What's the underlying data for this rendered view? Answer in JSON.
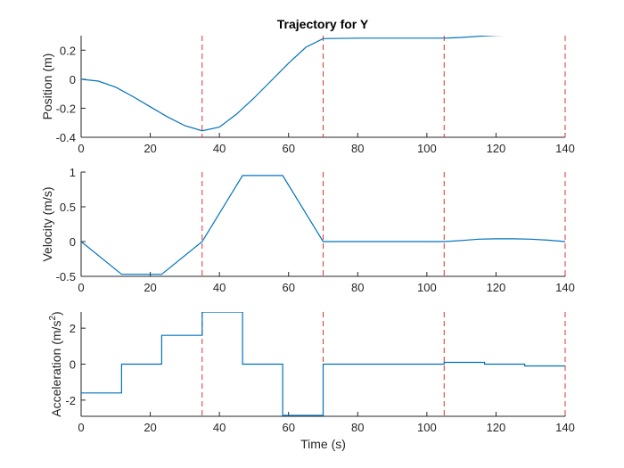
{
  "figure": {
    "title": "Trajectory for Y"
  },
  "chart_data": [
    {
      "type": "line",
      "title": "Trajectory for Y",
      "xlabel": "",
      "ylabel": "Position (m)",
      "xlim": [
        0,
        140
      ],
      "ylim": [
        -0.4,
        0.3
      ],
      "xticks": [
        0,
        20,
        40,
        60,
        80,
        100,
        120,
        140
      ],
      "xtick_labels": [
        "0",
        "20",
        "40",
        "60",
        "80",
        "100",
        "120",
        "140"
      ],
      "yticks": [
        0.2,
        0,
        -0.2,
        -0.4
      ],
      "ytick_labels": [
        "0.2",
        "0",
        "-0.2",
        "-0.4"
      ],
      "vlines": [
        35,
        70,
        105,
        140
      ],
      "series": [
        {
          "x": [
            0,
            5,
            10,
            15,
            20,
            25,
            30,
            35,
            40,
            45,
            50,
            55,
            60,
            65,
            70,
            80,
            90,
            100,
            105,
            110,
            115,
            120,
            125,
            130,
            135,
            140
          ],
          "y": [
            0,
            -0.013,
            -0.055,
            -0.12,
            -0.19,
            -0.26,
            -0.32,
            -0.355,
            -0.33,
            -0.24,
            -0.13,
            -0.01,
            0.11,
            0.22,
            0.28,
            0.283,
            0.283,
            0.283,
            0.283,
            0.288,
            0.296,
            0.302,
            0.306,
            0.308,
            0.309,
            0.31
          ]
        }
      ],
      "line_color": "#0072BD",
      "vline_color": "#E03030"
    },
    {
      "type": "line",
      "title": "",
      "xlabel": "",
      "ylabel": "Velocity (m/s)",
      "xlim": [
        0,
        140
      ],
      "ylim": [
        -0.5,
        1
      ],
      "xticks": [
        0,
        20,
        40,
        60,
        80,
        100,
        120,
        140
      ],
      "xtick_labels": [
        "0",
        "20",
        "40",
        "60",
        "80",
        "100",
        "120",
        "140"
      ],
      "yticks": [
        1,
        0.5,
        0,
        -0.5
      ],
      "ytick_labels": [
        "1",
        "0.5",
        "0",
        "-0.5"
      ],
      "vlines": [
        35,
        70,
        105,
        140
      ],
      "series": [
        {
          "x": [
            0,
            11.7,
            23.3,
            35,
            46.7,
            58.3,
            70,
            105,
            110,
            115,
            120,
            125,
            130,
            135,
            140
          ],
          "y": [
            0,
            -0.47,
            -0.47,
            0,
            0.95,
            0.95,
            0,
            0,
            0.015,
            0.035,
            0.04,
            0.04,
            0.035,
            0.02,
            0
          ]
        }
      ],
      "line_color": "#0072BD",
      "vline_color": "#E03030"
    },
    {
      "type": "line",
      "title": "",
      "xlabel": "Time (s)",
      "ylabel": "Acceleration (m/s2)",
      "xlim": [
        0,
        140
      ],
      "ylim": [
        -2.9,
        2.9
      ],
      "xticks": [
        0,
        20,
        40,
        60,
        80,
        100,
        120,
        140
      ],
      "xtick_labels": [
        "0",
        "20",
        "40",
        "60",
        "80",
        "100",
        "120",
        "140"
      ],
      "yticks": [
        2,
        0,
        -2
      ],
      "ytick_labels": [
        "2",
        "0",
        "-2"
      ],
      "vlines": [
        35,
        70,
        105,
        140
      ],
      "series": [
        {
          "x": [
            0,
            11.7,
            11.7,
            23.3,
            23.3,
            35,
            35,
            46.7,
            46.7,
            58.3,
            58.3,
            70,
            70,
            105,
            105,
            116.7,
            116.7,
            128.3,
            128.3,
            140
          ],
          "y": [
            -1.6,
            -1.6,
            0,
            0,
            1.6,
            1.6,
            2.9,
            2.9,
            0,
            0,
            -2.85,
            -2.85,
            0,
            0,
            0.1,
            0.1,
            0,
            0,
            -0.1,
            -0.1
          ]
        }
      ],
      "line_color": "#0072BD",
      "vline_color": "#E03030"
    }
  ]
}
